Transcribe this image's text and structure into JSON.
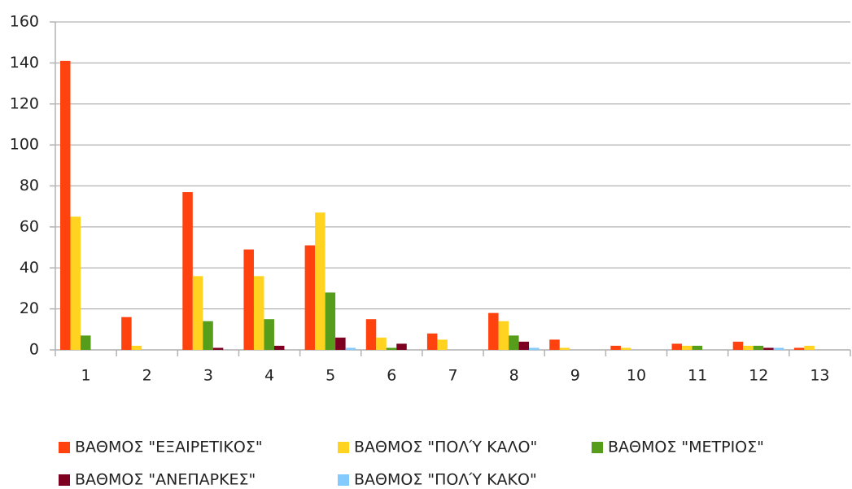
{
  "chart_data": {
    "type": "bar",
    "categories": [
      "1",
      "2",
      "3",
      "4",
      "5",
      "6",
      "7",
      "8",
      "9",
      "10",
      "11",
      "12",
      "13"
    ],
    "series": [
      {
        "name": "ΒΑΘΜΟΣ \"ΕΞΑΙΡΕΤΙΚΟΣ\"",
        "color": "#ff420e",
        "values": [
          141,
          16,
          77,
          49,
          51,
          15,
          8,
          18,
          5,
          2,
          3,
          4,
          1
        ]
      },
      {
        "name": "ΒΑΘΜΟΣ \"ΠΟΛΎ ΚΑΛΟ\"",
        "color": "#ffd320",
        "values": [
          65,
          2,
          36,
          36,
          67,
          6,
          5,
          14,
          1,
          1,
          2,
          2,
          2
        ]
      },
      {
        "name": "ΒΑΘΜΟΣ \"ΜΕΤΡΙΟΣ\"",
        "color": "#579d1c",
        "values": [
          7,
          0,
          14,
          15,
          28,
          1,
          0,
          7,
          0,
          0,
          2,
          2,
          0
        ]
      },
      {
        "name": "ΒΑΘΜΟΣ \"ΑΝΕΠΑΡΚΕΣ\"",
        "color": "#7e0021",
        "values": [
          0,
          0,
          1,
          2,
          6,
          3,
          0,
          4,
          0,
          0,
          0,
          1,
          0
        ]
      },
      {
        "name": "ΒΑΘΜΟΣ \"ΠΟΛΎ ΚΑΚΟ\"",
        "color": "#83caff",
        "values": [
          0,
          0,
          0,
          0,
          1,
          0,
          0,
          1,
          0,
          0,
          0,
          1,
          0
        ]
      }
    ],
    "ylim": [
      0,
      160
    ],
    "yticks": [
      0,
      20,
      40,
      60,
      80,
      100,
      120,
      140,
      160
    ],
    "grid": true,
    "legend": "bottom"
  }
}
